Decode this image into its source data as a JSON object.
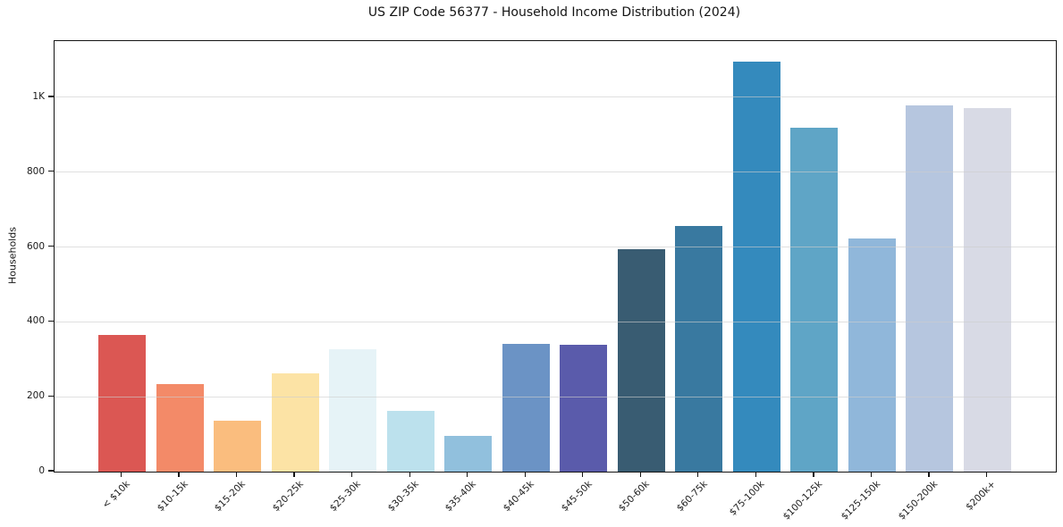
{
  "chart_data": {
    "type": "bar",
    "title": "US ZIP Code 56377 - Household Income Distribution (2024)",
    "xlabel": "",
    "ylabel": "Households",
    "categories": [
      "< $10k",
      "$10-15k",
      "$15-20k",
      "$20-25k",
      "$25-30k",
      "$30-35k",
      "$35-40k",
      "$40-45k",
      "$45-50k",
      "$50-60k",
      "$60-75k",
      "$75-100k",
      "$100-125k",
      "$125-150k",
      "$150-200k",
      "$200k+"
    ],
    "values": [
      366,
      235,
      136,
      263,
      326,
      162,
      96,
      342,
      338,
      595,
      657,
      1095,
      919,
      622,
      978,
      971
    ],
    "bar_colors": [
      "#DB5753",
      "#F38A68",
      "#FABD7E",
      "#FCE3A5",
      "#E6F3F7",
      "#BCE1ED",
      "#91C0DD",
      "#6B93C5",
      "#5A5BAB",
      "#395C72",
      "#3979A0",
      "#348ABD",
      "#5FA5C6",
      "#90B7DA",
      "#B6C6DF",
      "#D8DAE5"
    ],
    "ylim": [
      0,
      1150
    ],
    "yticks": {
      "values": [
        0,
        200,
        400,
        600,
        800,
        1000
      ],
      "labels": [
        "0",
        "200",
        "400",
        "600",
        "800",
        "1K"
      ]
    },
    "grid": "horizontal-only",
    "legend": "none",
    "background_color": "#ffffff",
    "spine_color": "#141414",
    "gridline_color": "#cdcdcd"
  }
}
